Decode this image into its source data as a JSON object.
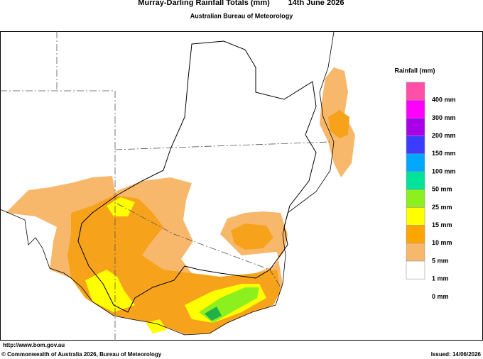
{
  "header": {
    "title": "Murray-Darling Rainfall Totals (mm)",
    "date": "14th June 2026",
    "subtitle": "Australian Bureau of Meteorology"
  },
  "legend": {
    "title": "Rainfall (mm)",
    "colors": [
      "#ff4fa8",
      "#ff00ff",
      "#a800e8",
      "#3c3cff",
      "#00a8ff",
      "#00e39a",
      "#8cf01e",
      "#ffff00",
      "#ffa500",
      "#f8b86c",
      "#ffffff"
    ],
    "labels": [
      "400 mm",
      "300 mm",
      "200 mm",
      "150 mm",
      "100 mm",
      "50 mm",
      "25 mm",
      "15 mm",
      "10 mm",
      "5 mm",
      "1 mm",
      "0 mm"
    ]
  },
  "footer": {
    "url": "http://www.bom.gov.au",
    "copyright": "© Commonwealth of Australia 2026, Bureau of Meteorology",
    "issued": "Issued: 14/06/2026"
  }
}
